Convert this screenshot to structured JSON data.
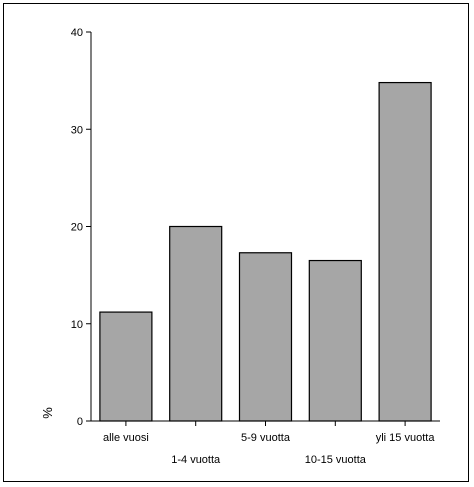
{
  "chart_data": {
    "type": "bar",
    "title": "",
    "xlabel": "",
    "ylabel": "%",
    "categories": [
      "alle vuosi",
      "1-4 vuotta",
      "5-9 vuotta",
      "10-15 vuotta",
      "yli 15 vuotta"
    ],
    "values": [
      11.2,
      20.0,
      17.3,
      16.5,
      34.8
    ],
    "ylim": [
      0,
      40
    ],
    "yticks": [
      "0",
      "10",
      "20",
      "30",
      "40"
    ],
    "grid": false,
    "legend": "none",
    "bar_color": "#a6a6a6",
    "bar_stroke": "#000000"
  }
}
